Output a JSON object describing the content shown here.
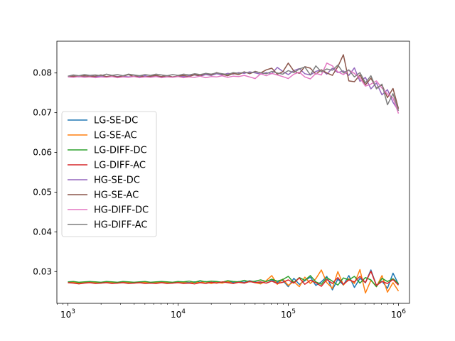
{
  "chart_data": {
    "type": "line",
    "x_scale": "log",
    "xlim": [
      1000,
      1000000
    ],
    "ylim": [
      0.022,
      0.088
    ],
    "x_ticks": [
      {
        "value": 1000,
        "base": "10",
        "exp": "3"
      },
      {
        "value": 10000,
        "base": "10",
        "exp": "4"
      },
      {
        "value": 100000,
        "base": "10",
        "exp": "5"
      },
      {
        "value": 1000000,
        "base": "10",
        "exp": "6"
      }
    ],
    "y_ticks": [
      {
        "value": 0.03,
        "label": "0.03"
      },
      {
        "value": 0.04,
        "label": "0.04"
      },
      {
        "value": 0.05,
        "label": "0.05"
      },
      {
        "value": 0.06,
        "label": "0.06"
      },
      {
        "value": 0.07,
        "label": "0.07"
      },
      {
        "value": 0.08,
        "label": "0.08"
      }
    ],
    "grid": false,
    "legend_position": "center-left",
    "x": [
      1000,
      1122,
      1259,
      1413,
      1585,
      1778,
      1995,
      2239,
      2512,
      2818,
      3162,
      3548,
      3981,
      4467,
      5012,
      5623,
      6310,
      7079,
      7943,
      8913,
      10000,
      11220,
      12589,
      14125,
      15849,
      17783,
      19953,
      22387,
      25119,
      28184,
      31623,
      35481,
      39811,
      44668,
      50119,
      56234,
      63096,
      70795,
      79433,
      89125,
      100000,
      112202,
      125893,
      141254,
      158489,
      177828,
      199526,
      223872,
      251189,
      281838,
      316228,
      354813,
      398107,
      446684,
      501187,
      562341,
      630957,
      707946,
      794328,
      891251,
      1000000
    ],
    "series": [
      {
        "name": "LG-SE-DC",
        "color": "#1f77b4",
        "values": [
          0.0273,
          0.0274,
          0.0272,
          0.0273,
          0.0274,
          0.0273,
          0.0272,
          0.0274,
          0.0273,
          0.0272,
          0.0274,
          0.0273,
          0.0272,
          0.0273,
          0.0274,
          0.0272,
          0.0273,
          0.0274,
          0.0273,
          0.0272,
          0.0274,
          0.0273,
          0.0272,
          0.0274,
          0.0273,
          0.0275,
          0.0272,
          0.0274,
          0.0273,
          0.0276,
          0.0272,
          0.0275,
          0.0273,
          0.0277,
          0.0274,
          0.0271,
          0.0276,
          0.0279,
          0.0273,
          0.0278,
          0.0262,
          0.0283,
          0.0268,
          0.0277,
          0.0286,
          0.0265,
          0.0274,
          0.0288,
          0.0254,
          0.0281,
          0.0266,
          0.029,
          0.026,
          0.0283,
          0.0272,
          0.0304,
          0.0265,
          0.0276,
          0.0258,
          0.0296,
          0.0268
        ]
      },
      {
        "name": "LG-SE-AC",
        "color": "#ff7f0e",
        "values": [
          0.0272,
          0.0273,
          0.0271,
          0.0272,
          0.0273,
          0.0272,
          0.0271,
          0.0273,
          0.0272,
          0.0271,
          0.0273,
          0.0272,
          0.0271,
          0.0272,
          0.0273,
          0.0271,
          0.0272,
          0.0273,
          0.0272,
          0.0271,
          0.0273,
          0.0272,
          0.0271,
          0.0273,
          0.0272,
          0.0274,
          0.027,
          0.0273,
          0.0271,
          0.0275,
          0.027,
          0.0274,
          0.0271,
          0.0276,
          0.0272,
          0.0269,
          0.0277,
          0.029,
          0.0268,
          0.0281,
          0.0265,
          0.0275,
          0.0262,
          0.0286,
          0.027,
          0.0282,
          0.0304,
          0.0272,
          0.0258,
          0.03,
          0.0266,
          0.0282,
          0.027,
          0.0305,
          0.0246,
          0.0278,
          0.0262,
          0.029,
          0.0248,
          0.0272,
          0.0251
        ]
      },
      {
        "name": "LG-DIFF-DC",
        "color": "#2ca02c",
        "values": [
          0.0274,
          0.0275,
          0.0273,
          0.0274,
          0.0275,
          0.0274,
          0.0273,
          0.0275,
          0.0274,
          0.0273,
          0.0275,
          0.0274,
          0.0273,
          0.0274,
          0.0275,
          0.0273,
          0.0274,
          0.0275,
          0.0274,
          0.0273,
          0.0275,
          0.0274,
          0.0276,
          0.0273,
          0.0277,
          0.0274,
          0.0276,
          0.0275,
          0.0273,
          0.0277,
          0.0275,
          0.0274,
          0.0278,
          0.0274,
          0.0276,
          0.0279,
          0.0275,
          0.0281,
          0.0276,
          0.028,
          0.0288,
          0.0272,
          0.0285,
          0.0278,
          0.029,
          0.0274,
          0.0268,
          0.0285,
          0.0276,
          0.0266,
          0.0284,
          0.0279,
          0.0288,
          0.0271,
          0.0285,
          0.0279,
          0.0262,
          0.0283,
          0.0275,
          0.0282,
          0.027
        ]
      },
      {
        "name": "LG-DIFF-AC",
        "color": "#d62728",
        "values": [
          0.0272,
          0.0271,
          0.0269,
          0.0271,
          0.0272,
          0.027,
          0.0271,
          0.0272,
          0.027,
          0.0271,
          0.0272,
          0.027,
          0.0271,
          0.0272,
          0.027,
          0.0271,
          0.027,
          0.0272,
          0.027,
          0.0271,
          0.0272,
          0.027,
          0.0271,
          0.0269,
          0.0272,
          0.027,
          0.0273,
          0.0271,
          0.0274,
          0.0272,
          0.027,
          0.0273,
          0.0271,
          0.0275,
          0.0272,
          0.0274,
          0.0271,
          0.0276,
          0.027,
          0.0273,
          0.0279,
          0.0271,
          0.0284,
          0.0268,
          0.0278,
          0.0272,
          0.0263,
          0.028,
          0.027,
          0.0285,
          0.0268,
          0.0279,
          0.0274,
          0.0288,
          0.0272,
          0.0301,
          0.0265,
          0.0275,
          0.027,
          0.028,
          0.0266
        ]
      },
      {
        "name": "HG-SE-DC",
        "color": "#9467bd",
        "values": [
          0.0791,
          0.0792,
          0.079,
          0.0792,
          0.0793,
          0.0791,
          0.0792,
          0.079,
          0.0793,
          0.0791,
          0.0792,
          0.079,
          0.0792,
          0.0791,
          0.0793,
          0.079,
          0.0792,
          0.0791,
          0.0793,
          0.079,
          0.0792,
          0.0791,
          0.0793,
          0.0795,
          0.0792,
          0.0796,
          0.0794,
          0.0798,
          0.0795,
          0.0799,
          0.0797,
          0.0801,
          0.0799,
          0.0803,
          0.08,
          0.0797,
          0.0801,
          0.0798,
          0.0814,
          0.0804,
          0.0796,
          0.0806,
          0.0811,
          0.0798,
          0.0795,
          0.0804,
          0.0808,
          0.0797,
          0.0812,
          0.0801,
          0.0805,
          0.0794,
          0.0813,
          0.0779,
          0.0789,
          0.076,
          0.0775,
          0.0745,
          0.0758,
          0.0726,
          0.0705
        ]
      },
      {
        "name": "HG-SE-AC",
        "color": "#8c564b",
        "values": [
          0.079,
          0.0792,
          0.0791,
          0.0793,
          0.0791,
          0.0792,
          0.0795,
          0.0791,
          0.0793,
          0.079,
          0.0792,
          0.0796,
          0.0791,
          0.0793,
          0.079,
          0.0792,
          0.0794,
          0.0791,
          0.0793,
          0.079,
          0.0792,
          0.0794,
          0.0791,
          0.0796,
          0.0793,
          0.0799,
          0.0795,
          0.0801,
          0.0797,
          0.0793,
          0.0799,
          0.0796,
          0.0803,
          0.0798,
          0.0804,
          0.08,
          0.0808,
          0.0812,
          0.0797,
          0.0803,
          0.0825,
          0.0805,
          0.0799,
          0.0816,
          0.0812,
          0.0797,
          0.0808,
          0.08,
          0.0794,
          0.0816,
          0.0846,
          0.078,
          0.0778,
          0.0795,
          0.077,
          0.0787,
          0.0762,
          0.077,
          0.0738,
          0.0761,
          0.071
        ]
      },
      {
        "name": "HG-DIFF-DC",
        "color": "#e377c2",
        "values": [
          0.079,
          0.0789,
          0.0791,
          0.0789,
          0.079,
          0.0788,
          0.079,
          0.0789,
          0.0791,
          0.0788,
          0.079,
          0.0789,
          0.0791,
          0.0788,
          0.079,
          0.0789,
          0.0791,
          0.0788,
          0.079,
          0.0789,
          0.0791,
          0.0788,
          0.079,
          0.0789,
          0.0792,
          0.0788,
          0.0791,
          0.079,
          0.0793,
          0.0789,
          0.0792,
          0.0791,
          0.0794,
          0.079,
          0.0786,
          0.0798,
          0.0793,
          0.0799,
          0.0795,
          0.0791,
          0.0786,
          0.0797,
          0.0802,
          0.079,
          0.0785,
          0.0799,
          0.0795,
          0.0825,
          0.0818,
          0.0803,
          0.0796,
          0.0807,
          0.0799,
          0.0787,
          0.0767,
          0.0772,
          0.078,
          0.0762,
          0.0747,
          0.0737,
          0.0698
        ]
      },
      {
        "name": "HG-DIFF-AC",
        "color": "#7f7f7f",
        "values": [
          0.0792,
          0.0795,
          0.0793,
          0.0796,
          0.0794,
          0.0795,
          0.0793,
          0.0797,
          0.0794,
          0.0796,
          0.0793,
          0.0797,
          0.0795,
          0.0793,
          0.0796,
          0.0794,
          0.0797,
          0.0795,
          0.0793,
          0.0796,
          0.0794,
          0.0797,
          0.0795,
          0.0798,
          0.0796,
          0.0799,
          0.0797,
          0.08,
          0.0798,
          0.0796,
          0.0801,
          0.0799,
          0.0802,
          0.08,
          0.0803,
          0.0801,
          0.0798,
          0.0804,
          0.08,
          0.0797,
          0.0806,
          0.0801,
          0.081,
          0.0815,
          0.0795,
          0.0818,
          0.0803,
          0.081,
          0.0807,
          0.082,
          0.08,
          0.0808,
          0.079,
          0.0801,
          0.0775,
          0.0793,
          0.076,
          0.0772,
          0.072,
          0.0748,
          0.0705
        ]
      }
    ]
  }
}
